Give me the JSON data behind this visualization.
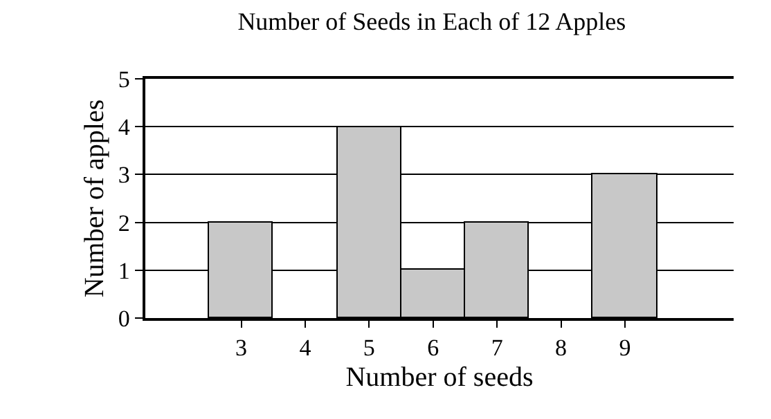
{
  "chart_data": {
    "type": "bar",
    "title": "Number of Seeds in Each of 12 Apples",
    "xlabel": "Number of seeds",
    "ylabel": "Number of apples",
    "x": [
      3,
      5,
      6,
      7,
      9
    ],
    "values": [
      2,
      4,
      1,
      2,
      3
    ],
    "color": "#c8c8c8",
    "xlim": [
      1.5,
      10.7
    ],
    "xticks": [
      3,
      4,
      5,
      6,
      7,
      8,
      9
    ],
    "ylim": [
      0,
      5
    ],
    "yticks": [
      0,
      1,
      2,
      3,
      4,
      5
    ],
    "grid": "y"
  }
}
